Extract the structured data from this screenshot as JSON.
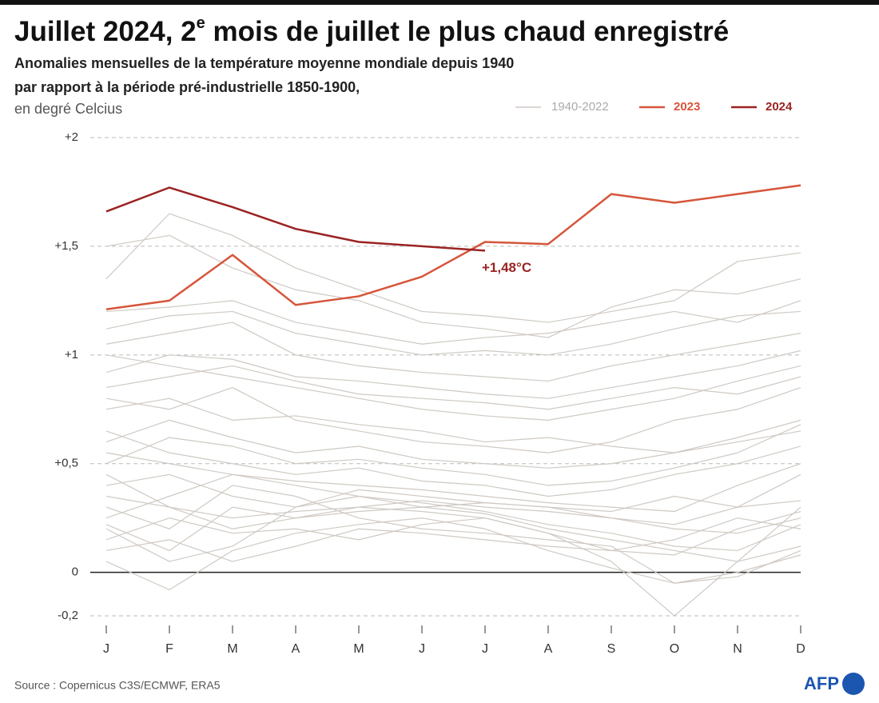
{
  "chart_data": {
    "type": "line",
    "title": [
      "Juillet 2024, 2",
      "e",
      " mois de juillet le plus chaud enregistré"
    ],
    "subtitle": [
      "Anomalies mensuelles de la température moyenne mondiale depuis 1940",
      "par rapport à la période pré-industrielle 1850-1900,"
    ],
    "unit": "en degré Celcius",
    "categories": [
      "J",
      "F",
      "M",
      "A",
      "M",
      "J",
      "J",
      "A",
      "S",
      "O",
      "N",
      "D"
    ],
    "ylim": [
      -0.2,
      2
    ],
    "yticks": [
      {
        "value": 2,
        "label": "+2"
      },
      {
        "value": 1.5,
        "label": "+1,5"
      },
      {
        "value": 1,
        "label": "+1"
      },
      {
        "value": 0.5,
        "label": "+0,5"
      },
      0,
      {
        "value": -0.2,
        "label": "-0,2"
      }
    ],
    "grid": true,
    "background_series": {
      "name": "1940-2022",
      "color": "#cfc9c3",
      "lines": [
        [
          0.22,
          0.1,
          0.3,
          0.25,
          0.28,
          0.3,
          0.27,
          0.2,
          0.15,
          0.1,
          0.05,
          0.12
        ],
        [
          0.05,
          -0.08,
          0.1,
          0.18,
          0.22,
          0.25,
          0.2,
          0.1,
          0.02,
          -0.05,
          -0.02,
          0.1
        ],
        [
          0.35,
          0.3,
          0.25,
          0.28,
          0.3,
          0.33,
          0.3,
          0.28,
          0.25,
          0.2,
          0.18,
          0.25
        ],
        [
          0.4,
          0.45,
          0.35,
          0.3,
          0.38,
          0.35,
          0.32,
          0.3,
          0.28,
          0.35,
          0.3,
          0.33
        ],
        [
          0.15,
          0.25,
          0.18,
          0.2,
          0.15,
          0.22,
          0.25,
          0.18,
          0.1,
          0.08,
          0.2,
          0.28
        ],
        [
          0.55,
          0.5,
          0.45,
          0.42,
          0.4,
          0.38,
          0.35,
          0.32,
          0.3,
          0.28,
          0.4,
          0.5
        ],
        [
          0.6,
          0.7,
          0.62,
          0.55,
          0.58,
          0.52,
          0.5,
          0.48,
          0.5,
          0.55,
          0.6,
          0.65
        ],
        [
          0.75,
          0.8,
          0.7,
          0.72,
          0.68,
          0.65,
          0.6,
          0.62,
          0.58,
          0.55,
          0.62,
          0.7
        ],
        [
          0.3,
          0.2,
          0.4,
          0.35,
          0.25,
          0.2,
          0.18,
          0.15,
          0.12,
          -0.05,
          0.0,
          0.08
        ],
        [
          0.85,
          0.9,
          0.95,
          0.88,
          0.82,
          0.8,
          0.78,
          0.75,
          0.8,
          0.85,
          0.82,
          0.9
        ],
        [
          0.92,
          1.0,
          0.98,
          0.9,
          0.88,
          0.85,
          0.82,
          0.8,
          0.85,
          0.9,
          0.95,
          1.02
        ],
        [
          1.05,
          1.1,
          1.15,
          1.0,
          0.95,
          0.92,
          0.9,
          0.88,
          0.95,
          1.0,
          1.05,
          1.1
        ],
        [
          1.2,
          1.22,
          1.25,
          1.15,
          1.1,
          1.05,
          1.08,
          1.1,
          1.15,
          1.2,
          1.15,
          1.25
        ],
        [
          1.35,
          1.65,
          1.55,
          1.4,
          1.3,
          1.2,
          1.18,
          1.15,
          1.2,
          1.25,
          1.43,
          1.47
        ],
        [
          1.5,
          1.55,
          1.4,
          1.3,
          1.25,
          1.15,
          1.12,
          1.08,
          1.22,
          1.3,
          1.28,
          1.35
        ],
        [
          0.45,
          0.3,
          0.2,
          0.25,
          0.3,
          0.28,
          0.25,
          0.18,
          0.05,
          -0.2,
          0.05,
          0.3
        ],
        [
          0.65,
          0.55,
          0.5,
          0.45,
          0.48,
          0.42,
          0.4,
          0.35,
          0.38,
          0.45,
          0.5,
          0.58
        ],
        [
          0.25,
          0.35,
          0.45,
          0.4,
          0.35,
          0.3,
          0.32,
          0.3,
          0.25,
          0.22,
          0.3,
          0.45
        ],
        [
          0.1,
          0.15,
          0.05,
          0.12,
          0.2,
          0.18,
          0.15,
          0.12,
          0.1,
          0.15,
          0.25,
          0.2
        ],
        [
          0.8,
          0.75,
          0.85,
          0.7,
          0.65,
          0.6,
          0.58,
          0.55,
          0.6,
          0.7,
          0.75,
          0.85
        ],
        [
          1.0,
          0.95,
          0.9,
          0.85,
          0.8,
          0.75,
          0.72,
          0.7,
          0.75,
          0.8,
          0.88,
          0.95
        ],
        [
          0.5,
          0.62,
          0.58,
          0.5,
          0.52,
          0.48,
          0.45,
          0.4,
          0.42,
          0.48,
          0.55,
          0.68
        ],
        [
          0.2,
          0.05,
          0.12,
          0.3,
          0.35,
          0.32,
          0.28,
          0.22,
          0.18,
          0.12,
          0.1,
          0.22
        ],
        [
          1.12,
          1.18,
          1.2,
          1.1,
          1.05,
          1.0,
          1.02,
          1.0,
          1.05,
          1.12,
          1.18,
          1.2
        ]
      ]
    },
    "series": [
      {
        "name": "2023",
        "color": "#d6553a",
        "values": [
          1.21,
          1.25,
          1.46,
          1.23,
          1.27,
          1.36,
          1.52,
          1.51,
          1.74,
          1.7,
          1.74,
          1.78
        ]
      },
      {
        "name": "2024",
        "color": "#9b2323",
        "values": [
          1.66,
          1.77,
          1.68,
          1.58,
          1.52,
          1.5,
          1.48,
          null,
          null,
          null,
          null,
          null
        ]
      }
    ],
    "annotation": "+1,48°C",
    "source": "Source : Copernicus C3S/ECMWF, ERA5",
    "logo": "AFP"
  }
}
